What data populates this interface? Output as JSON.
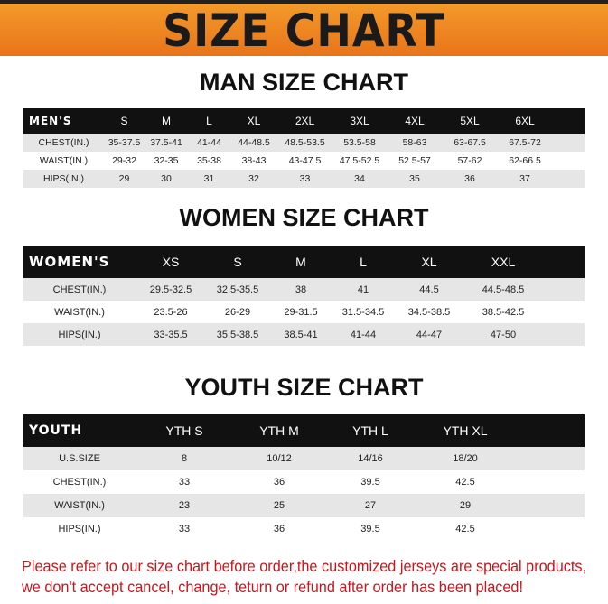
{
  "title": "SIZE CHART",
  "banner_color": "#ee8420",
  "men": {
    "title": "MAN SIZE CHART",
    "header": "MEN'S",
    "sizes": [
      "S",
      "M",
      "L",
      "XL",
      "2XL",
      "3XL",
      "4XL",
      "5XL",
      "6XL"
    ],
    "rows": [
      {
        "label": "CHEST(IN.)",
        "values": [
          "35-37.5",
          "37.5-41",
          "41-44",
          "44-48.5",
          "48.5-53.5",
          "53.5-58",
          "58-63",
          "63-67.5",
          "67.5-72"
        ]
      },
      {
        "label": "WAIST(IN.)",
        "values": [
          "29-32",
          "32-35",
          "35-38",
          "38-43",
          "43-47.5",
          "47.5-52.5",
          "52.5-57",
          "57-62",
          "62-66.5"
        ]
      },
      {
        "label": "HIPS(IN.)",
        "values": [
          "29",
          "30",
          "31",
          "32",
          "33",
          "34",
          "35",
          "36",
          "37"
        ]
      }
    ]
  },
  "women": {
    "title": "WOMEN SIZE CHART",
    "header": "WOMEN'S",
    "sizes": [
      "XS",
      "S",
      "M",
      "L",
      "XL",
      "XXL"
    ],
    "rows": [
      {
        "label": "CHEST(IN.)",
        "values": [
          "29.5-32.5",
          "32.5-35.5",
          "38",
          "41",
          "44.5",
          "44.5-48.5"
        ]
      },
      {
        "label": "WAIST(IN.)",
        "values": [
          "23.5-26",
          "26-29",
          "29-31.5",
          "31.5-34.5",
          "34.5-38.5",
          "38.5-42.5"
        ]
      },
      {
        "label": "HIPS(IN.)",
        "values": [
          "33-35.5",
          "35.5-38.5",
          "38.5-41",
          "41-44",
          "44-47",
          "47-50"
        ]
      }
    ]
  },
  "youth": {
    "title": "YOUTH SIZE CHART",
    "header": "YOUTH",
    "sizes": [
      "YTH S",
      "YTH M",
      "YTH L",
      "YTH XL"
    ],
    "rows": [
      {
        "label": "U.S.SIZE",
        "values": [
          "8",
          "10/12",
          "14/16",
          "18/20"
        ]
      },
      {
        "label": "CHEST(IN.)",
        "values": [
          "33",
          "36",
          "39.5",
          "42.5"
        ]
      },
      {
        "label": "WAIST(IN.)",
        "values": [
          "23",
          "25",
          "27",
          "29"
        ]
      },
      {
        "label": "HIPS(IN.)",
        "values": [
          "33",
          "36",
          "39.5",
          "42.5"
        ]
      }
    ]
  },
  "notice": {
    "line1": "Please refer to our size chart before order,the customized jerseys are special products,",
    "line2": "we don't accept cancel, change, teturn or refund after order has been placed!",
    "color": "#c8161d"
  }
}
